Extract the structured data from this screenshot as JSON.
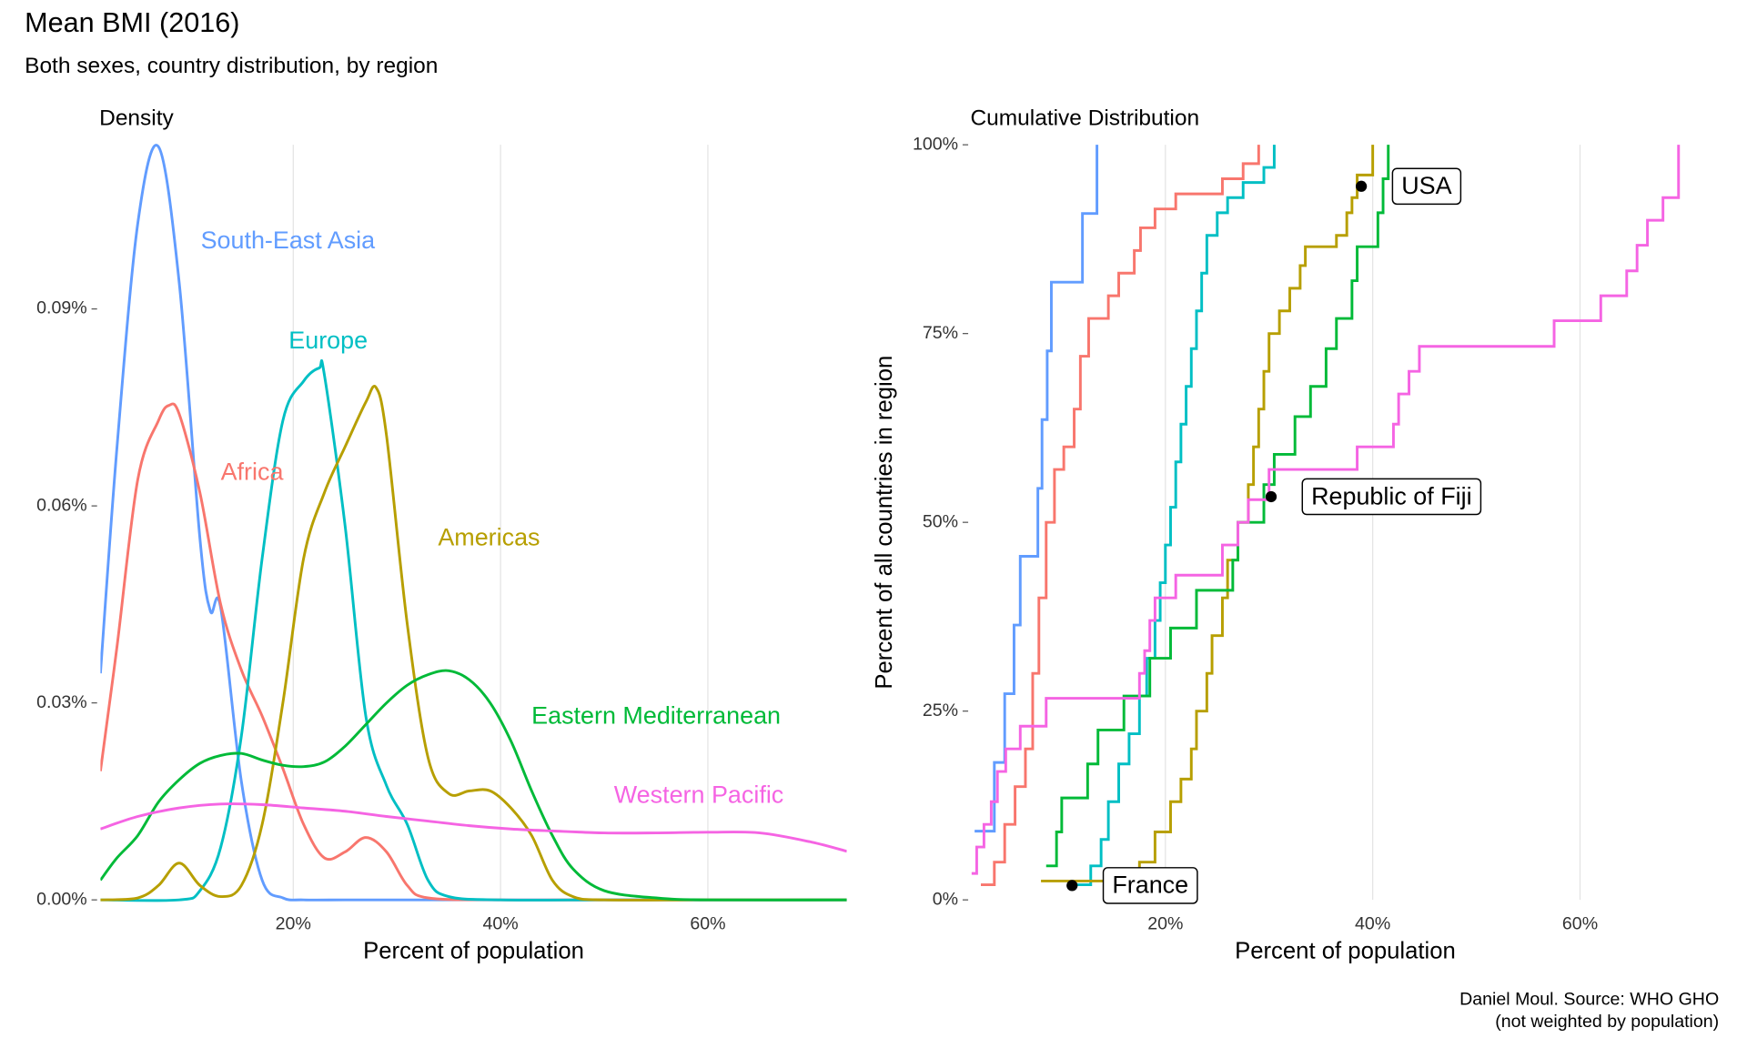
{
  "header": {
    "title": "Mean BMI (2016)",
    "subtitle": "Both sexes, country distribution, by region",
    "caption": [
      "Daniel Moul. Source: WHO GHO",
      "(not weighted by population)"
    ]
  },
  "chart_data": [
    {
      "type": "line",
      "title": "Density",
      "x_label": "Percent of population",
      "xlim": [
        1.4,
        73.4
      ],
      "ylim": [
        0,
        0.115
      ],
      "xticks": [
        {
          "value": 20,
          "label": "20%"
        },
        {
          "value": 40,
          "label": "40%"
        },
        {
          "value": 60,
          "label": "60%"
        }
      ],
      "yticks": [
        {
          "value": 0,
          "label": "0.00%"
        },
        {
          "value": 0.03,
          "label": "0.03%"
        },
        {
          "value": 0.06,
          "label": "0.06%"
        },
        {
          "value": 0.09,
          "label": "0.09%"
        }
      ],
      "grid": true,
      "series": [
        {
          "name": "South-East Asia",
          "color": "#619CFF",
          "x": [
            1.4,
            3,
            5,
            7,
            9,
            11,
            12,
            13,
            15,
            17,
            19,
            21,
            25,
            30,
            40,
            50,
            60,
            73.4
          ],
          "values": [
            0.0345,
            0.069,
            0.103,
            0.1147,
            0.094,
            0.055,
            0.044,
            0.0445,
            0.018,
            0.003,
            0.0003,
            0,
            0,
            0,
            0,
            0,
            0,
            0
          ]
        },
        {
          "name": "Africa",
          "color": "#F8766D",
          "x": [
            1.4,
            3,
            5,
            7,
            8,
            9,
            11,
            13,
            15,
            17,
            19,
            21,
            23,
            25,
            27,
            29,
            31,
            33,
            40,
            50,
            60,
            73.4
          ],
          "values": [
            0.0196,
            0.0386,
            0.064,
            0.073,
            0.0753,
            0.074,
            0.062,
            0.045,
            0.035,
            0.028,
            0.02,
            0.0115,
            0.0064,
            0.0073,
            0.0095,
            0.0073,
            0.0022,
            0.0003,
            0,
            0,
            0,
            0
          ]
        },
        {
          "name": "Europe",
          "color": "#00BFC4",
          "x": [
            1.4,
            9,
            11,
            13,
            15,
            17,
            19,
            21,
            22.5,
            23,
            25,
            27,
            29,
            31,
            33,
            35,
            40,
            50,
            60,
            73.4
          ],
          "values": [
            0,
            0,
            0.0014,
            0.008,
            0.025,
            0.052,
            0.073,
            0.079,
            0.081,
            0.08,
            0.057,
            0.028,
            0.0174,
            0.0115,
            0.003,
            0.0005,
            0,
            0,
            0,
            0
          ]
        },
        {
          "name": "Americas",
          "color": "#B79F00",
          "x": [
            1.4,
            5,
            7,
            9,
            11,
            13,
            15,
            17,
            19,
            21,
            23,
            25,
            27,
            28,
            29,
            31,
            33,
            35,
            37,
            39,
            41,
            43,
            45,
            47,
            50,
            60,
            73.4
          ],
          "values": [
            0,
            0.0003,
            0.0022,
            0.0056,
            0.0022,
            0.0005,
            0.0022,
            0.0115,
            0.03,
            0.052,
            0.062,
            0.069,
            0.0758,
            0.078,
            0.0707,
            0.042,
            0.0217,
            0.0162,
            0.0166,
            0.0166,
            0.014,
            0.0098,
            0.003,
            0.0005,
            0,
            0,
            0
          ]
        },
        {
          "name": "Eastern Mediterranean",
          "color": "#00BA38",
          "x": [
            1.4,
            3,
            5,
            7,
            9,
            11,
            13,
            15,
            17,
            19,
            21,
            23,
            25,
            27,
            29,
            31,
            33,
            35,
            37,
            39,
            41,
            43,
            45,
            47,
            50,
            55,
            60,
            73.4
          ],
          "values": [
            0.003,
            0.0064,
            0.0098,
            0.0149,
            0.0183,
            0.0208,
            0.022,
            0.0223,
            0.0213,
            0.0205,
            0.0203,
            0.021,
            0.0234,
            0.0267,
            0.03,
            0.0327,
            0.0343,
            0.0349,
            0.0335,
            0.03,
            0.0242,
            0.0166,
            0.0098,
            0.0047,
            0.0014,
            0.0003,
            0,
            0
          ]
        },
        {
          "name": "Western Pacific",
          "color": "#F564E3",
          "x": [
            1.4,
            5,
            9,
            13,
            17,
            21,
            25,
            29,
            33,
            37,
            41,
            45,
            50,
            55,
            60,
            65,
            70,
            73.4
          ],
          "values": [
            0.0108,
            0.0127,
            0.014,
            0.0146,
            0.0145,
            0.014,
            0.0135,
            0.0127,
            0.012,
            0.0113,
            0.0108,
            0.0105,
            0.0102,
            0.0102,
            0.0103,
            0.0102,
            0.0088,
            0.0074
          ]
        }
      ]
    },
    {
      "type": "step",
      "title": "Cumulative Distribution",
      "x_label": "Percent of population",
      "y_label": "Percent of all countries in region",
      "xlim": [
        1.3,
        73.4
      ],
      "ylim": [
        0,
        100
      ],
      "xticks": [
        {
          "value": 20,
          "label": "20%"
        },
        {
          "value": 40,
          "label": "40%"
        },
        {
          "value": 60,
          "label": "60%"
        }
      ],
      "yticks": [
        {
          "value": 0,
          "label": "0%"
        },
        {
          "value": 25,
          "label": "25%"
        },
        {
          "value": 50,
          "label": "50%"
        },
        {
          "value": 75,
          "label": "75%"
        },
        {
          "value": 100,
          "label": "100%"
        }
      ],
      "grid": true,
      "series": [
        {
          "color": "#619CFF",
          "x": [
            1.6,
            3.5,
            4.5,
            5.4,
            6.0,
            7.7,
            8.1,
            8.6,
            9.0,
            12.0,
            13.4
          ],
          "values": [
            9.1,
            18.2,
            27.3,
            36.4,
            45.5,
            54.5,
            63.6,
            72.7,
            81.8,
            90.9,
            100
          ]
        },
        {
          "color": "#F8766D",
          "x": [
            2.2,
            3.5,
            4.5,
            5.5,
            6.5,
            7.2,
            7.8,
            8.5,
            9.3,
            10.2,
            11.2,
            11.8,
            12.6,
            14.5,
            15.5,
            17,
            17.6,
            19,
            21,
            25.5,
            27.5,
            29
          ],
          "values": [
            2,
            5,
            10,
            15,
            20,
            30,
            40,
            50,
            57,
            60,
            65,
            72,
            77,
            80,
            83,
            86,
            89,
            91.5,
            93.5,
            95.5,
            97.5,
            100
          ]
        },
        {
          "color": "#00BFC4",
          "x": [
            11.5,
            12.8,
            13.8,
            14.5,
            15.5,
            16.5,
            17.5,
            18.2,
            19,
            19.5,
            20,
            20.5,
            21,
            21.5,
            22,
            22.5,
            23,
            23.5,
            24,
            25,
            26,
            27.5,
            29.5,
            30.5
          ],
          "values": [
            2,
            4.5,
            8,
            13,
            18,
            22,
            27,
            32,
            37,
            42,
            47,
            52,
            58,
            63,
            68,
            73,
            78,
            83,
            88,
            91,
            93,
            95,
            97,
            100
          ]
        },
        {
          "color": "#B79F00",
          "x": [
            8,
            15,
            17.5,
            19,
            20.5,
            21.5,
            22.5,
            23,
            24,
            24.5,
            25.5,
            26,
            27,
            28,
            28.5,
            29,
            29.5,
            30,
            31,
            32,
            33,
            33.5,
            36.5,
            37.5,
            38,
            38.5,
            40
          ],
          "values": [
            2.5,
            3,
            5,
            9,
            13,
            16,
            20,
            25,
            30,
            35,
            40,
            45,
            50,
            55,
            60,
            65,
            70,
            75,
            78,
            81,
            84,
            86.5,
            88,
            91,
            93,
            96,
            100
          ]
        },
        {
          "color": "#00BA38",
          "x": [
            8.5,
            9.5,
            10,
            12.5,
            13.5,
            16,
            18.5,
            20.5,
            23,
            26.5,
            27,
            29.5,
            30.5,
            32.5,
            34,
            35.5,
            36.5,
            38,
            38.5,
            40.5,
            41,
            41.5
          ],
          "values": [
            4.5,
            9,
            13.5,
            18,
            22.5,
            27,
            32,
            36,
            41,
            45,
            50,
            55,
            59,
            64,
            68,
            73,
            77,
            82,
            86.5,
            91,
            95.5,
            100
          ]
        },
        {
          "color": "#F564E3",
          "x": [
            1.3,
            1.8,
            2.5,
            3.2,
            3.8,
            4.6,
            6,
            8.5,
            17.5,
            18,
            18.5,
            19,
            21,
            25.5,
            27,
            28,
            30,
            38.5,
            42,
            42.5,
            43.5,
            44.5,
            57.5,
            62,
            64.5,
            65.5,
            66.5,
            68,
            69.5
          ],
          "values": [
            3.5,
            7,
            10,
            13,
            17,
            20,
            23,
            26.7,
            30,
            33,
            37,
            40,
            43,
            47,
            50,
            53,
            57,
            60,
            63,
            67,
            70,
            73.3,
            76.7,
            80,
            83.3,
            86.7,
            90,
            93,
            96.7
          ]
        }
      ],
      "highlights": [
        {
          "label": "France",
          "x": 11.0,
          "y": 1.9
        },
        {
          "label": "Republic of Fiji",
          "x": 30.2,
          "y": 53.4
        },
        {
          "label": "USA",
          "x": 38.9,
          "y": 94.5
        }
      ]
    }
  ]
}
